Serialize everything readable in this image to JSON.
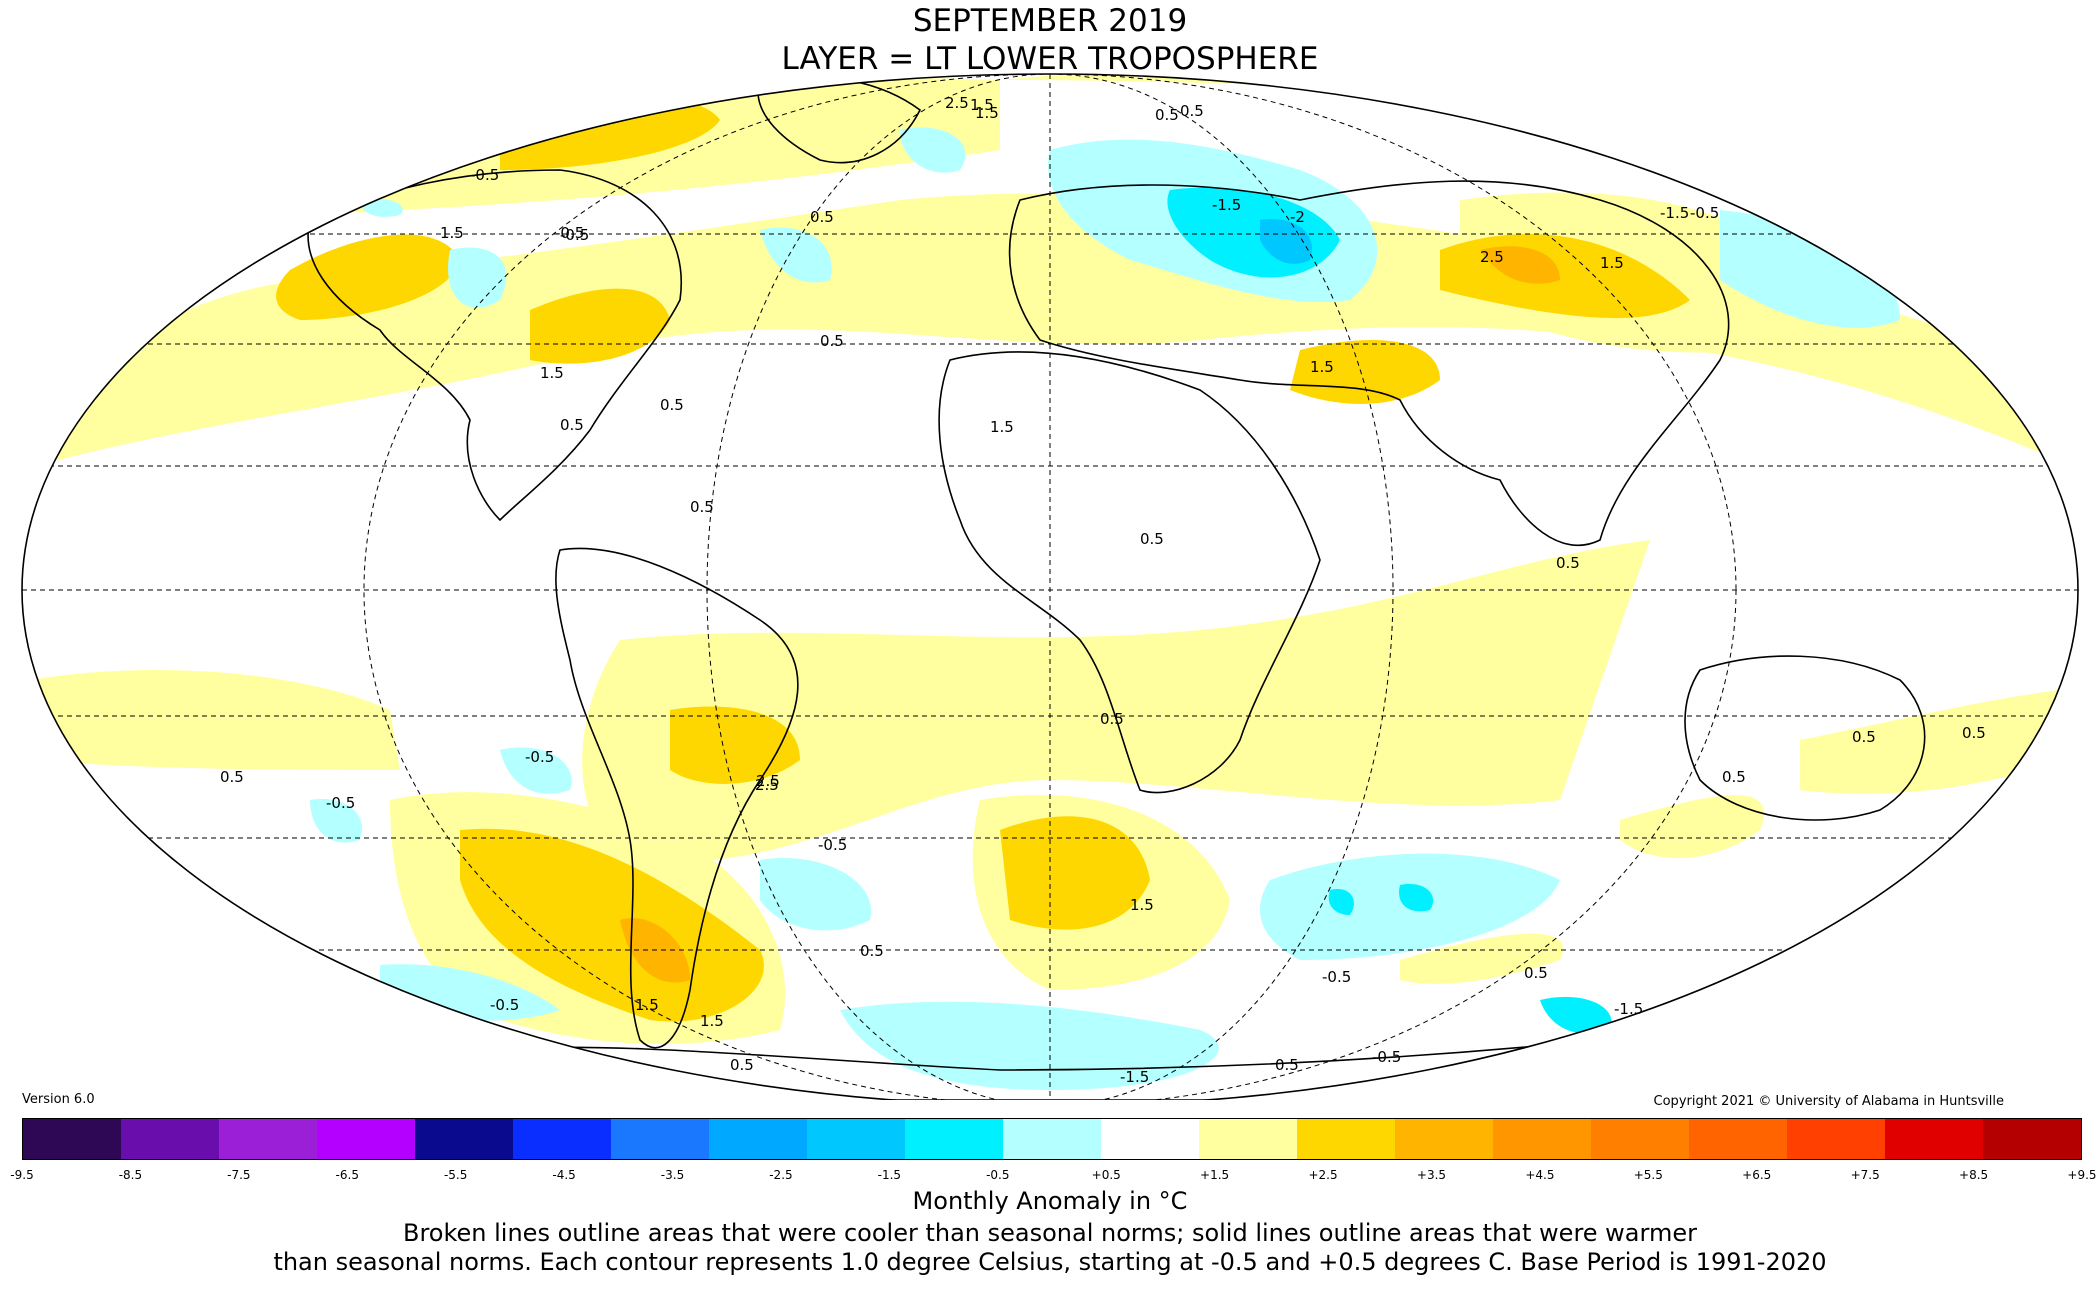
{
  "title": {
    "line1": "SEPTEMBER 2019",
    "line2": "LAYER = LT LOWER TROPOSPHERE"
  },
  "version": "Version 6.0",
  "copyright": "Copyright 2021 © University of Alabama in Huntsville",
  "colorbar": {
    "ticks": [
      "-9.5",
      "-8.5",
      "-7.5",
      "-6.5",
      "-5.5",
      "-4.5",
      "-3.5",
      "-2.5",
      "-1.5",
      "-0.5",
      "+0.5",
      "+1.5",
      "+2.5",
      "+3.5",
      "+4.5",
      "+5.5",
      "+6.5",
      "+7.5",
      "+8.5",
      "+9.5"
    ],
    "colors": [
      "#2e0854",
      "#6a0dad",
      "#9b1fd6",
      "#b400ff",
      "#0a0a8f",
      "#0a2eff",
      "#1a78ff",
      "#00a8ff",
      "#00c8ff",
      "#00f0ff",
      "#b4ffff",
      "#ffffff",
      "#ffffa0",
      "#ffd700",
      "#ffb400",
      "#ff9600",
      "#ff8000",
      "#ff6400",
      "#ff4000",
      "#e00000",
      "#b40000"
    ]
  },
  "units_label": "Monthly Anomaly in °C",
  "note": {
    "line1": "Broken lines outline areas that were cooler than seasonal norms; solid lines outline areas that were warmer",
    "line2": "than seasonal norms. Each contour represents 1.0 degree Celsius, starting at -0.5 and +0.5 degrees C. Base Period is 1991-2020"
  },
  "contour_labels": [
    "2.5",
    "1.5",
    "0.5",
    "-0.5",
    "1.5",
    "-0.5",
    "0.5",
    "-1.5",
    "-2",
    "-1.5",
    "0.5",
    "1.5",
    "1.5",
    "2.5",
    "1.5",
    "0.5",
    "0.5",
    "1.5",
    "0.5",
    "0.5",
    "0.5",
    "-0.5",
    "-0.5",
    "0.5",
    "-0.5",
    "0.5",
    "0.5",
    "0.5",
    "0.5",
    "2.5",
    "1.5",
    "-0.5",
    "0.5",
    "1.5",
    "0.5",
    "1.5",
    "-0.5",
    "-1.5",
    "-0.5",
    "0.5",
    "-1.5",
    "0.5",
    "-0.5",
    "-0.5",
    "2.5",
    "1.5",
    "0.5"
  ],
  "map": {
    "projection": "Mollweide",
    "legend_colors": {
      "cool_-0.5_to_-1.5": "#b4ffff",
      "cool_-1.5_to_-2.5": "#00f0ff",
      "cool_-2.5_to_-3.5": "#00c8ff",
      "warm_+0.5_to_+1.5": "#ffffa0",
      "warm_+1.5_to_+2.5": "#ffd700",
      "warm_+2.5_to_+3.5": "#ffb400"
    }
  }
}
